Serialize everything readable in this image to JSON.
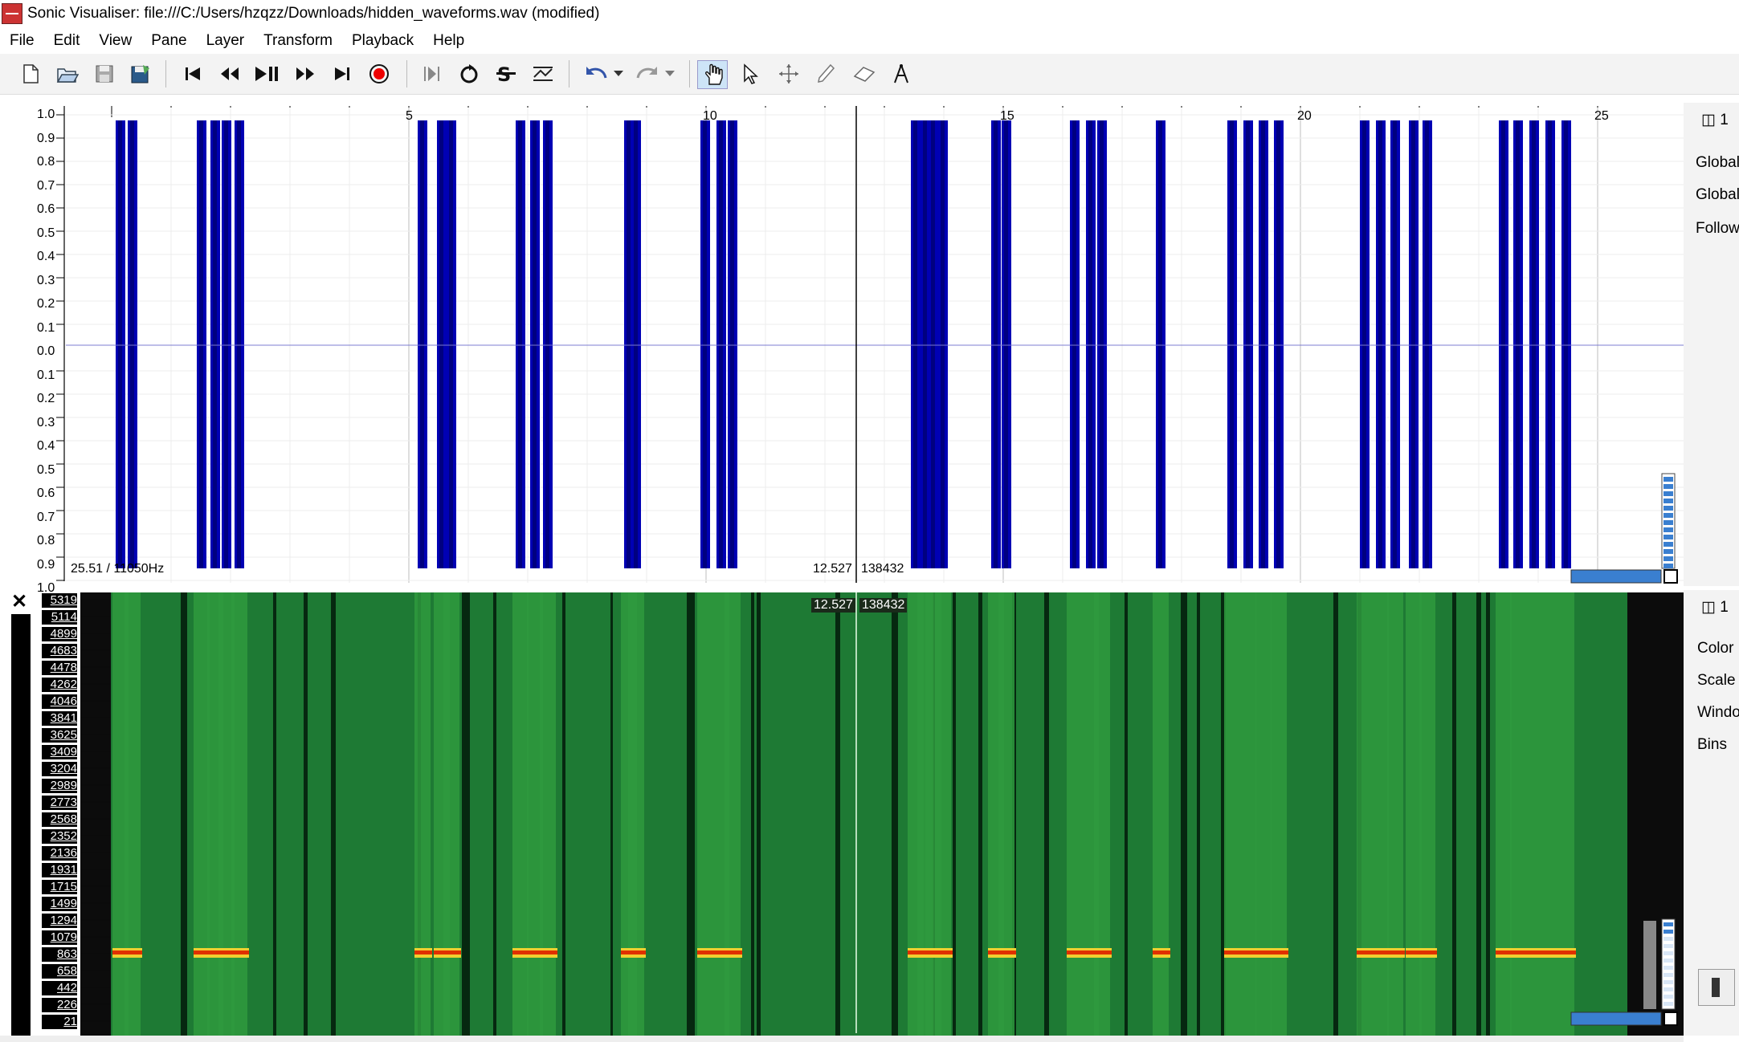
{
  "window": {
    "title": "Sonic Visualiser: file:///C:/Users/hzqzz/Downloads/hidden_waveforms.wav (modified)"
  },
  "menu": [
    "File",
    "Edit",
    "View",
    "Pane",
    "Layer",
    "Transform",
    "Playback",
    "Help"
  ],
  "toolbar": {
    "buttons": [
      "new-file",
      "open-file",
      "save-file",
      "save-as",
      "rewind-start",
      "rewind",
      "play-pause",
      "fast-forward",
      "forward-end",
      "record",
      "play-selection",
      "loop",
      "solo",
      "follow-playback",
      "undo",
      "undo-menu",
      "redo",
      "redo-menu",
      "navigate-tool",
      "select-tool",
      "move-tool",
      "draw-tool",
      "erase-tool",
      "measure-tool"
    ],
    "active": "navigate-tool"
  },
  "waveform_pane": {
    "time_ticks": [
      "5",
      "10",
      "15",
      "20",
      "25"
    ],
    "amplitude_labels": [
      "1.0",
      "0.9",
      "0.8",
      "0.7",
      "0.6",
      "0.5",
      "0.4",
      "0.3",
      "0.2",
      "0.1",
      "0.0",
      "0.1",
      "0.2",
      "0.3",
      "0.4",
      "0.5",
      "0.6",
      "0.7",
      "0.8",
      "0.9",
      "1.0"
    ],
    "info_left": "25.51 / 11050Hz",
    "cursor_time": "12.527",
    "cursor_frame": "138432",
    "panel_tab": "1",
    "panel_labels": [
      "Global",
      "Global",
      "Follow"
    ]
  },
  "spectrogram_pane": {
    "freq_labels": [
      "5319",
      "5114",
      "4899",
      "4683",
      "4478",
      "4262",
      "4046",
      "3841",
      "3625",
      "3409",
      "3204",
      "2989",
      "2773",
      "2568",
      "2352",
      "2136",
      "1931",
      "1715",
      "1499",
      "1294",
      "1079",
      "863",
      "658",
      "442",
      "226",
      "21"
    ],
    "cursor_time": "12.527",
    "cursor_frame": "138432",
    "panel_tab": "1",
    "panel_labels": [
      "Color",
      "Scale",
      "Windo",
      "Bins"
    ]
  },
  "colors": {
    "waveform": "#0000b4",
    "waveform_dark": "#000080",
    "spectrogram_bg": "#1e7a34",
    "tone": "#e03000",
    "toolbar_active": "#cde4f7"
  }
}
